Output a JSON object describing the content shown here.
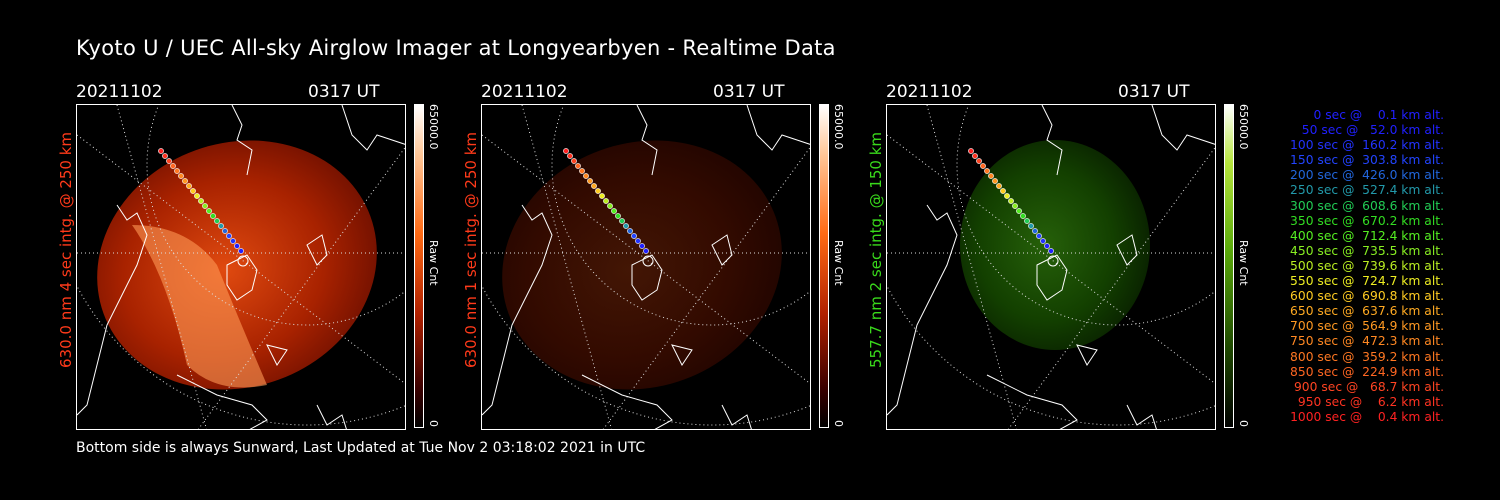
{
  "title": "Kyoto U / UEC All-sky Airglow Imager at Longyearbyen - Realtime Data",
  "footer": "Bottom side is always Sunward, Last Updated at Tue Nov  2 03:18:02 2021 in UTC",
  "panels": [
    {
      "date": "20211102",
      "time": "0317 UT",
      "ylabel": "630.0 nm 4 sec intg. @ 250 km",
      "label_color": "#ff3a1a",
      "cmax": "65000.0",
      "cmin": "0",
      "cunit": "Raw Cnt",
      "palette": "red",
      "glow_intensity": 1.0
    },
    {
      "date": "20211102",
      "time": "0317 UT",
      "ylabel": "630.0 nm 1 sec intg. @ 250 km",
      "label_color": "#ff3a1a",
      "cmax": "65000.0",
      "cmin": "0",
      "cunit": "Raw Cnt",
      "palette": "red",
      "glow_intensity": 0.3
    },
    {
      "date": "20211102",
      "time": "0317 UT",
      "ylabel": "557.7 nm 2 sec intg. @ 150 km",
      "label_color": "#39d91b",
      "cmax": "65000.0",
      "cmin": "0",
      "cunit": "Raw Cnt",
      "palette": "green",
      "glow_intensity": 0.6
    }
  ],
  "legend": [
    {
      "text": "0 sec @    0.1 km alt.",
      "color": "#2020ff"
    },
    {
      "text": "50 sec @   52.0 km alt.",
      "color": "#2020ff"
    },
    {
      "text": "100 sec @  160.2 km alt.",
      "color": "#2233ff"
    },
    {
      "text": "150 sec @  303.8 km alt.",
      "color": "#2244ff"
    },
    {
      "text": "200 sec @  426.0 km alt.",
      "color": "#2266dd"
    },
    {
      "text": "250 sec @  527.4 km alt.",
      "color": "#2299aa"
    },
    {
      "text": "300 sec @  608.6 km alt.",
      "color": "#22cc55"
    },
    {
      "text": "350 sec @  670.2 km alt.",
      "color": "#33dd22"
    },
    {
      "text": "400 sec @  712.4 km alt.",
      "color": "#55ee22"
    },
    {
      "text": "450 sec @  735.5 km alt.",
      "color": "#88ee22"
    },
    {
      "text": "500 sec @  739.6 km alt.",
      "color": "#bbee22"
    },
    {
      "text": "550 sec @  724.7 km alt.",
      "color": "#eeee22"
    },
    {
      "text": "600 sec @  690.8 km alt.",
      "color": "#ffcc22"
    },
    {
      "text": "650 sec @  637.6 km alt.",
      "color": "#ffaa22"
    },
    {
      "text": "700 sec @  564.9 km alt.",
      "color": "#ff9922"
    },
    {
      "text": "750 sec @  472.3 km alt.",
      "color": "#ff8822"
    },
    {
      "text": "800 sec @  359.2 km alt.",
      "color": "#ff7722"
    },
    {
      "text": "850 sec @  224.9 km alt.",
      "color": "#ff6622"
    },
    {
      "text": "900 sec @   68.7 km alt.",
      "color": "#ff4422"
    },
    {
      "text": "950 sec @    6.2 km alt.",
      "color": "#ff3322"
    },
    {
      "text": "1000 sec @    0.4 km alt.",
      "color": "#ff2222"
    }
  ]
}
